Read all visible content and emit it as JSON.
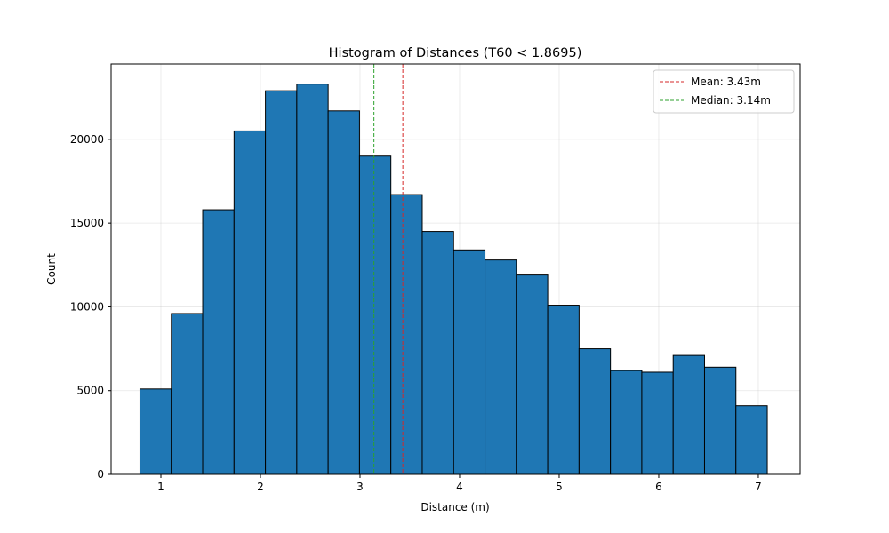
{
  "chart_data": {
    "type": "bar",
    "title": "Histogram of Distances (T60 < 1.8695)",
    "xlabel": "Distance (m)",
    "ylabel": "Count",
    "xlim": [
      0.5,
      7.42
    ],
    "ylim": [
      0,
      24500
    ],
    "xticks": [
      1,
      2,
      3,
      4,
      5,
      6,
      7
    ],
    "yticks": [
      0,
      5000,
      10000,
      15000,
      20000
    ],
    "grid": true,
    "legend_position": "top-right",
    "bin_edges": [
      0.79,
      1.105,
      1.42,
      1.735,
      2.05,
      2.365,
      2.68,
      2.995,
      3.31,
      3.625,
      3.94,
      4.255,
      4.57,
      4.885,
      5.2,
      5.515,
      5.83,
      6.145,
      6.46,
      6.775,
      7.09
    ],
    "counts": [
      5100,
      9600,
      15800,
      20500,
      22900,
      23300,
      21700,
      19000,
      16700,
      14500,
      13400,
      12800,
      11900,
      10100,
      7500,
      6200,
      6100,
      7100,
      6400,
      4100
    ],
    "bar_color": "#1f77b4",
    "edge_color": "#000000",
    "reference_lines": [
      {
        "label": "Mean: 3.43m",
        "value": 3.43,
        "color": "#d62728"
      },
      {
        "label": "Median: 3.14m",
        "value": 3.14,
        "color": "#2ca02c"
      }
    ]
  }
}
